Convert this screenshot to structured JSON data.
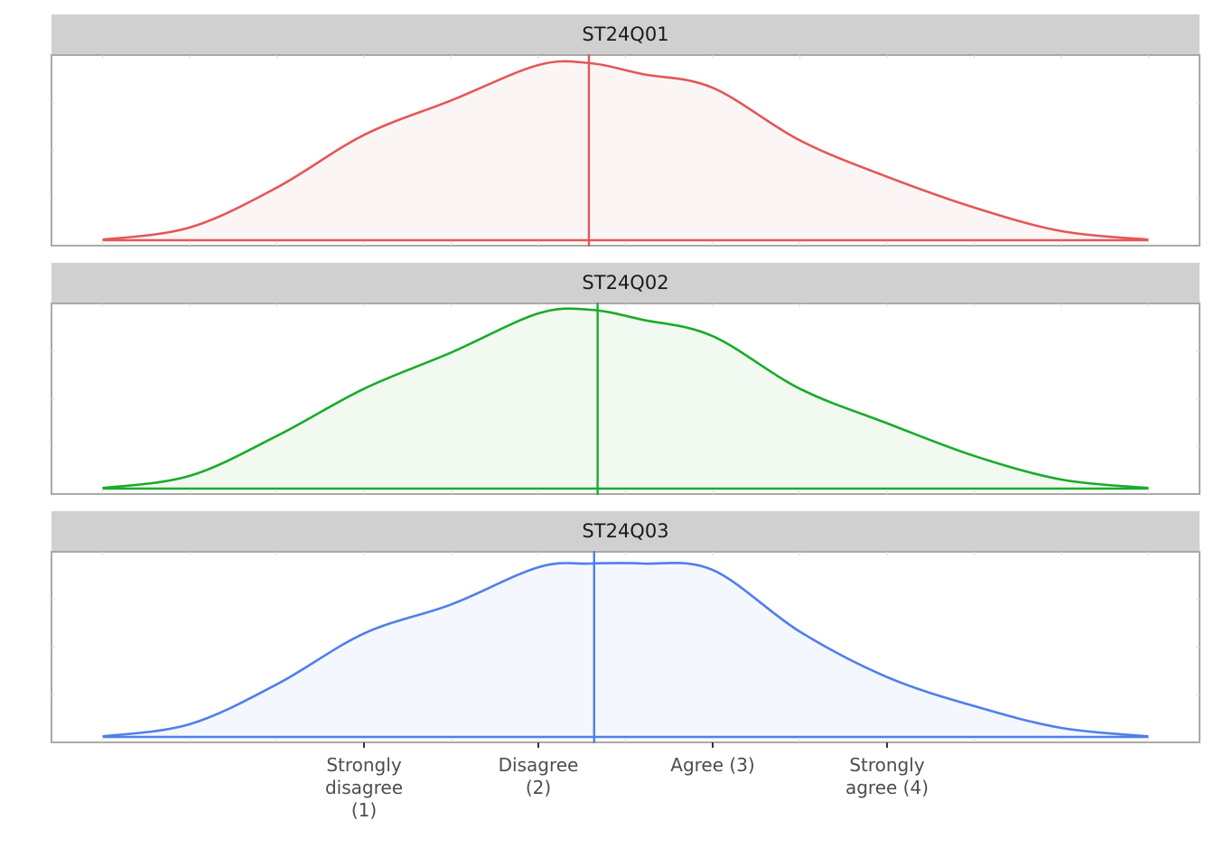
{
  "chart_data": {
    "type": "area",
    "x_tick_labels": [
      [
        "Strongly",
        "disagree",
        "(1)"
      ],
      [
        "Disagree",
        "(2)"
      ],
      [
        "Agree (3)"
      ],
      [
        "Strongly",
        "agree (4)"
      ]
    ],
    "x_tick_values": [
      1,
      2,
      3,
      4
    ],
    "xlim": [
      -0.8,
      5.6
    ],
    "grid": false,
    "panels": [
      {
        "label": "ST24Q01",
        "color": "#e45757",
        "fill": "#fcf5f5",
        "mean": 2.29,
        "density": {
          "x": [
            -0.5,
            0.0,
            0.5,
            1.0,
            1.5,
            2.0,
            2.3,
            2.6,
            3.0,
            3.5,
            4.0,
            4.5,
            5.0,
            5.5
          ],
          "y": [
            0.003,
            0.07,
            0.29,
            0.58,
            0.77,
            0.965,
            0.975,
            0.915,
            0.84,
            0.55,
            0.35,
            0.18,
            0.05,
            0.003
          ]
        }
      },
      {
        "label": "ST24Q02",
        "color": "#1aab2a",
        "fill": "#f2f9f1",
        "mean": 2.34,
        "density": {
          "x": [
            -0.5,
            0.0,
            0.5,
            1.0,
            1.5,
            2.0,
            2.3,
            2.6,
            3.0,
            3.5,
            4.0,
            4.5,
            5.0,
            5.5
          ],
          "y": [
            0.003,
            0.07,
            0.29,
            0.55,
            0.75,
            0.965,
            0.985,
            0.93,
            0.84,
            0.55,
            0.36,
            0.18,
            0.05,
            0.003
          ]
        }
      },
      {
        "label": "ST24Q03",
        "color": "#4f7fe9",
        "fill": "#f4f7fd",
        "mean": 2.32,
        "density": {
          "x": [
            -0.5,
            0.0,
            0.5,
            1.0,
            1.5,
            2.0,
            2.3,
            2.6,
            3.0,
            3.5,
            4.0,
            4.5,
            5.0,
            5.5
          ],
          "y": [
            0.003,
            0.07,
            0.29,
            0.57,
            0.73,
            0.935,
            0.955,
            0.955,
            0.92,
            0.58,
            0.33,
            0.17,
            0.05,
            0.003
          ]
        }
      }
    ]
  }
}
